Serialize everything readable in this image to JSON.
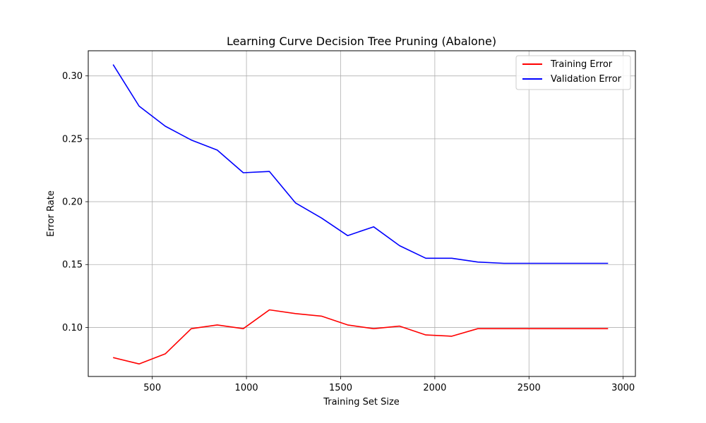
{
  "chart_data": {
    "type": "line",
    "title": "Learning Curve Decision Tree Pruning (Abalone)",
    "xlabel": "Training Set Size",
    "ylabel": "Error Rate",
    "xlim": [
      160,
      3065
    ],
    "ylim": [
      0.061,
      0.32
    ],
    "xticks": [
      500,
      1000,
      1500,
      2000,
      2500,
      3000
    ],
    "yticks": [
      0.1,
      0.15,
      0.2,
      0.25,
      0.3
    ],
    "xtick_labels": [
      "500",
      "1000",
      "1500",
      "2000",
      "2500",
      "3000"
    ],
    "ytick_labels": [
      "0.10",
      "0.15",
      "0.20",
      "0.25",
      "0.30"
    ],
    "grid": true,
    "legend": "top-right",
    "x": [
      292,
      430,
      569,
      707,
      845,
      983,
      1122,
      1260,
      1398,
      1537,
      1675,
      1813,
      1952,
      2090,
      2228,
      2367,
      2505,
      2643,
      2782,
      2920
    ],
    "series": [
      {
        "name": "Training Error",
        "color": "#ff0000",
        "values": [
          0.076,
          0.071,
          0.079,
          0.099,
          0.102,
          0.099,
          0.114,
          0.111,
          0.109,
          0.102,
          0.099,
          0.101,
          0.094,
          0.093,
          0.099,
          0.099,
          0.099,
          0.099,
          0.099,
          0.099
        ]
      },
      {
        "name": "Validation Error",
        "color": "#0000ff",
        "values": [
          0.309,
          0.276,
          0.26,
          0.249,
          0.241,
          0.223,
          0.224,
          0.199,
          0.187,
          0.173,
          0.18,
          0.165,
          0.155,
          0.155,
          0.152,
          0.151,
          0.151,
          0.151,
          0.151,
          0.151
        ]
      }
    ]
  }
}
